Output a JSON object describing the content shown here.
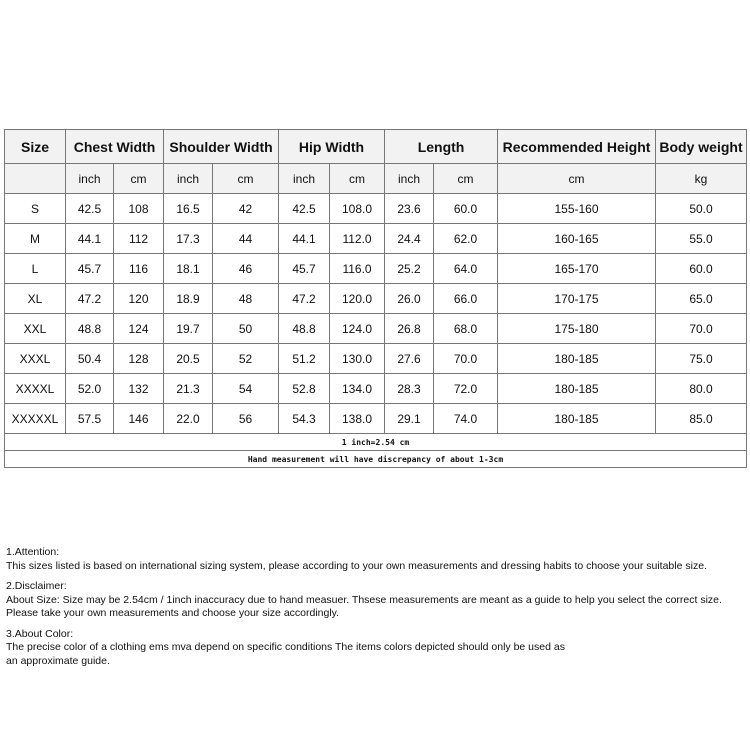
{
  "table": {
    "headers": [
      "Size",
      "Chest Width",
      "Shoulder Width",
      "Hip Width",
      "Length",
      "Recommended Height",
      "Body weight"
    ],
    "units": [
      "",
      "inch",
      "cm",
      "inch",
      "cm",
      "inch",
      "cm",
      "inch",
      "cm",
      "cm",
      "kg"
    ],
    "rows": [
      [
        "S",
        "42.5",
        "108",
        "16.5",
        "42",
        "42.5",
        "108.0",
        "23.6",
        "60.0",
        "155-160",
        "50.0"
      ],
      [
        "M",
        "44.1",
        "112",
        "17.3",
        "44",
        "44.1",
        "112.0",
        "24.4",
        "62.0",
        "160-165",
        "55.0"
      ],
      [
        "L",
        "45.7",
        "116",
        "18.1",
        "46",
        "45.7",
        "116.0",
        "25.2",
        "64.0",
        "165-170",
        "60.0"
      ],
      [
        "XL",
        "47.2",
        "120",
        "18.9",
        "48",
        "47.2",
        "120.0",
        "26.0",
        "66.0",
        "170-175",
        "65.0"
      ],
      [
        "XXL",
        "48.8",
        "124",
        "19.7",
        "50",
        "48.8",
        "124.0",
        "26.8",
        "68.0",
        "175-180",
        "70.0"
      ],
      [
        "XXXL",
        "50.4",
        "128",
        "20.5",
        "52",
        "51.2",
        "130.0",
        "27.6",
        "70.0",
        "180-185",
        "75.0"
      ],
      [
        "XXXXL",
        "52.0",
        "132",
        "21.3",
        "54",
        "52.8",
        "134.0",
        "28.3",
        "72.0",
        "180-185",
        "80.0"
      ],
      [
        "XXXXXL",
        "57.5",
        "146",
        "22.0",
        "56",
        "54.3",
        "138.0",
        "29.1",
        "74.0",
        "180-185",
        "85.0"
      ]
    ],
    "note1": "1 inch=2.54 cm",
    "note2": "Hand measurement will have discrepancy of about 1-3cm"
  },
  "notes": {
    "attention_title": "1.Attention:",
    "attention_text": "This sizes listed is based on international sizing system, please according to your own measurements and dressing habits to choose your suitable size.",
    "disclaimer_title": "2.Disclaimer:",
    "disclaimer_text1": "About Size: Size may be 2.54cm / 1inch inaccuracy due to hand measuer. Thsese measurements are meant as a guide to help you select the correct size.",
    "disclaimer_text2": "Please take your own measurements and choose your size accordingly.",
    "color_title": "3.About Color:",
    "color_text1": "The precise color of a clothing ems mva depend on specific conditions The items colors depicted should only be used as",
    "color_text2": "an approximate guide."
  }
}
